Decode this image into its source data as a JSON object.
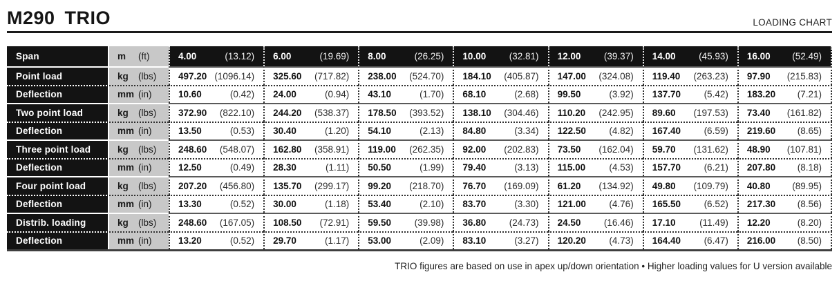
{
  "header": {
    "title_model": "M290",
    "title_series": "TRIO",
    "corner_label": "LOADING CHART"
  },
  "colors": {
    "row_label_bg": "#131313",
    "units_bg": "#c8c8c8",
    "group_divider": "#5a5a5a",
    "text": "#111111"
  },
  "table": {
    "rows": [
      {
        "label": "Span",
        "unit": "m",
        "unit_alt": "(ft)",
        "style": "header",
        "values": [
          [
            "4.00",
            "(13.12)"
          ],
          [
            "6.00",
            "(19.69)"
          ],
          [
            "8.00",
            "(26.25)"
          ],
          [
            "10.00",
            "(32.81)"
          ],
          [
            "12.00",
            "(39.37)"
          ],
          [
            "14.00",
            "(45.93)"
          ],
          [
            "16.00",
            "(52.49)"
          ]
        ]
      },
      {
        "label": "Point load",
        "unit": "kg",
        "unit_alt": "(lbs)",
        "style": "group-start",
        "values": [
          [
            "497.20",
            "(1096.14)"
          ],
          [
            "325.60",
            "(717.82)"
          ],
          [
            "238.00",
            "(524.70)"
          ],
          [
            "184.10",
            "(405.87)"
          ],
          [
            "147.00",
            "(324.08)"
          ],
          [
            "119.40",
            "(263.23)"
          ],
          [
            "97.90",
            "(215.83)"
          ]
        ]
      },
      {
        "label": "Deflection",
        "unit": "mm",
        "unit_alt": "(in)",
        "style": "dotted",
        "values": [
          [
            "10.60",
            "(0.42)"
          ],
          [
            "24.00",
            "(0.94)"
          ],
          [
            "43.10",
            "(1.70)"
          ],
          [
            "68.10",
            "(2.68)"
          ],
          [
            "99.50",
            "(3.92)"
          ],
          [
            "137.70",
            "(5.42)"
          ],
          [
            "183.20",
            "(7.21)"
          ]
        ]
      },
      {
        "label": "Two point load",
        "unit": "kg",
        "unit_alt": "(lbs)",
        "style": "group-start",
        "values": [
          [
            "372.90",
            "(822.10)"
          ],
          [
            "244.20",
            "(538.37)"
          ],
          [
            "178.50",
            "(393.52)"
          ],
          [
            "138.10",
            "(304.46)"
          ],
          [
            "110.20",
            "(242.95)"
          ],
          [
            "89.60",
            "(197.53)"
          ],
          [
            "73.40",
            "(161.82)"
          ]
        ]
      },
      {
        "label": "Deflection",
        "unit": "mm",
        "unit_alt": "(in)",
        "style": "dotted",
        "values": [
          [
            "13.50",
            "(0.53)"
          ],
          [
            "30.40",
            "(1.20)"
          ],
          [
            "54.10",
            "(2.13)"
          ],
          [
            "84.80",
            "(3.34)"
          ],
          [
            "122.50",
            "(4.82)"
          ],
          [
            "167.40",
            "(6.59)"
          ],
          [
            "219.60",
            "(8.65)"
          ]
        ]
      },
      {
        "label": "Three point load",
        "unit": "kg",
        "unit_alt": "(lbs)",
        "style": "group-start",
        "values": [
          [
            "248.60",
            "(548.07)"
          ],
          [
            "162.80",
            "(358.91)"
          ],
          [
            "119.00",
            "(262.35)"
          ],
          [
            "92.00",
            "(202.83)"
          ],
          [
            "73.50",
            "(162.04)"
          ],
          [
            "59.70",
            "(131.62)"
          ],
          [
            "48.90",
            "(107.81)"
          ]
        ]
      },
      {
        "label": "Deflection",
        "unit": "mm",
        "unit_alt": "(in)",
        "style": "dotted",
        "values": [
          [
            "12.50",
            "(0.49)"
          ],
          [
            "28.30",
            "(1.11)"
          ],
          [
            "50.50",
            "(1.99)"
          ],
          [
            "79.40",
            "(3.13)"
          ],
          [
            "115.00",
            "(4.53)"
          ],
          [
            "157.70",
            "(6.21)"
          ],
          [
            "207.80",
            "(8.18)"
          ]
        ]
      },
      {
        "label": "Four point load",
        "unit": "kg",
        "unit_alt": "(lbs)",
        "style": "group-start",
        "values": [
          [
            "207.20",
            "(456.80)"
          ],
          [
            "135.70",
            "(299.17)"
          ],
          [
            "99.20",
            "(218.70)"
          ],
          [
            "76.70",
            "(169.09)"
          ],
          [
            "61.20",
            "(134.92)"
          ],
          [
            "49.80",
            "(109.79)"
          ],
          [
            "40.80",
            "(89.95)"
          ]
        ]
      },
      {
        "label": "Deflection",
        "unit": "mm",
        "unit_alt": "(in)",
        "style": "dotted",
        "values": [
          [
            "13.30",
            "(0.52)"
          ],
          [
            "30.00",
            "(1.18)"
          ],
          [
            "53.40",
            "(2.10)"
          ],
          [
            "83.70",
            "(3.30)"
          ],
          [
            "121.00",
            "(4.76)"
          ],
          [
            "165.50",
            "(6.52)"
          ],
          [
            "217.30",
            "(8.56)"
          ]
        ]
      },
      {
        "label": "Distrib. loading",
        "unit": "kg",
        "unit_alt": "(lbs)",
        "style": "group-start",
        "values": [
          [
            "248.60",
            "(167.05)"
          ],
          [
            "108.50",
            "(72.91)"
          ],
          [
            "59.50",
            "(39.98)"
          ],
          [
            "36.80",
            "(24.73)"
          ],
          [
            "24.50",
            "(16.46)"
          ],
          [
            "17.10",
            "(11.49)"
          ],
          [
            "12.20",
            "(8.20)"
          ]
        ]
      },
      {
        "label": "Deflection",
        "unit": "mm",
        "unit_alt": "(in)",
        "style": "dotted",
        "values": [
          [
            "13.20",
            "(0.52)"
          ],
          [
            "29.70",
            "(1.17)"
          ],
          [
            "53.00",
            "(2.09)"
          ],
          [
            "83.10",
            "(3.27)"
          ],
          [
            "120.20",
            "(4.73)"
          ],
          [
            "164.40",
            "(6.47)"
          ],
          [
            "216.00",
            "(8.50)"
          ]
        ]
      }
    ]
  },
  "footer": {
    "note": "TRIO figures are based on use in apex up/down orientation • Higher loading values for U version available"
  }
}
